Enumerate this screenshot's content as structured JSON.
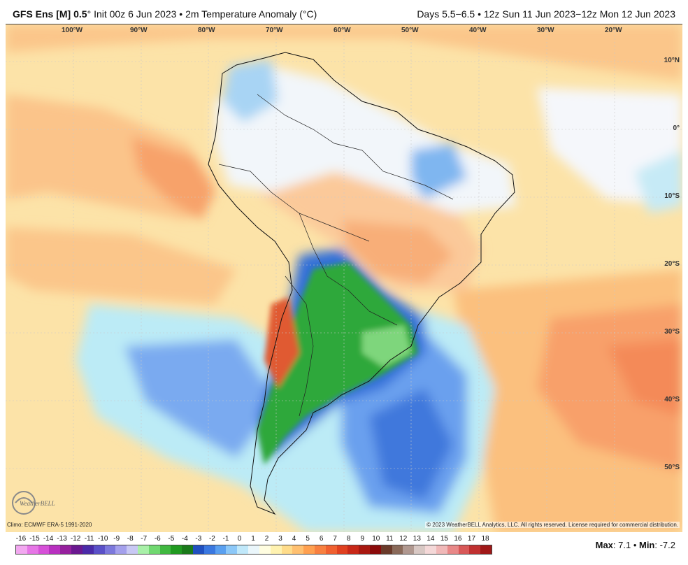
{
  "header": {
    "model": "GFS Ens [M] 0.5",
    "degree": "°",
    "init": " Init 00z 6 Jun 2023 • 2m Temperature Anomaly (°C)",
    "valid": "Days 5.5−6.5 • 12z Sun 11 Jun 2023−12z Mon 12 Jun 2023"
  },
  "longitudes": [
    "100°W",
    "90°W",
    "80°W",
    "70°W",
    "60°W",
    "50°W",
    "40°W",
    "30°W",
    "20°W"
  ],
  "latitudes": [
    "10°N",
    "0°",
    "10°S",
    "20°S",
    "30°S",
    "40°S",
    "50°S"
  ],
  "footer": {
    "climo": "Climo: ECMWF ERA-5 1991-2020",
    "copyright": "© 2023 WeatherBELL Analytics, LLC. All rights reserved. License required for commercial distribution."
  },
  "logo_text": "WeatherBELL",
  "stats": {
    "max_label": "Max",
    "max_value": ": 7.1",
    "sep": " • ",
    "min_label": "Min",
    "min_value": ": -7.2"
  },
  "scale": {
    "labels": [
      "-16",
      "-15",
      "-14",
      "-13",
      "-12",
      "-11",
      "-10",
      "-9",
      "-8",
      "-7",
      "-6",
      "-5",
      "-4",
      "-3",
      "-2",
      "-1",
      "0",
      "1",
      "2",
      "3",
      "4",
      "5",
      "6",
      "7",
      "8",
      "9",
      "10",
      "11",
      "12",
      "13",
      "14",
      "15",
      "16",
      "17",
      "18"
    ],
    "colors": [
      "#f2a8f0",
      "#e676e6",
      "#d650d8",
      "#b830c0",
      "#96209e",
      "#6a1890",
      "#4a2aa8",
      "#5a50c8",
      "#7c78dc",
      "#a4a0ec",
      "#c8c8f4",
      "#a8f0a8",
      "#70d870",
      "#40b840",
      "#209a20",
      "#1a7a1a",
      "#2050c0",
      "#3a78e0",
      "#5aa0f0",
      "#8cc8f8",
      "#c0e8fa",
      "#eaf6fb",
      "#fffde0",
      "#fff2b0",
      "#ffdc8a",
      "#ffc070",
      "#ffa050",
      "#f88040",
      "#f06030",
      "#e04020",
      "#c82818",
      "#a81810",
      "#8a0a0a",
      "#6a3a2a",
      "#8a6a5a",
      "#b09890",
      "#d8c8c4",
      "#f4d8d8",
      "#f0b8b8",
      "#e88888",
      "#d85858",
      "#c03030",
      "#a01818"
    ]
  },
  "colors": {
    "ocean_warm_light": "#fde8a8",
    "ocean_warm": "#fcc883",
    "ocean_warmer": "#f9a86a",
    "cold_light": "#bfeaf6",
    "cold": "#6fa6f0",
    "cold_strong": "#2f6fd8",
    "green": "#2fae3c",
    "green_light": "#7ed67c",
    "land_neutral": "#f4f8fc"
  }
}
